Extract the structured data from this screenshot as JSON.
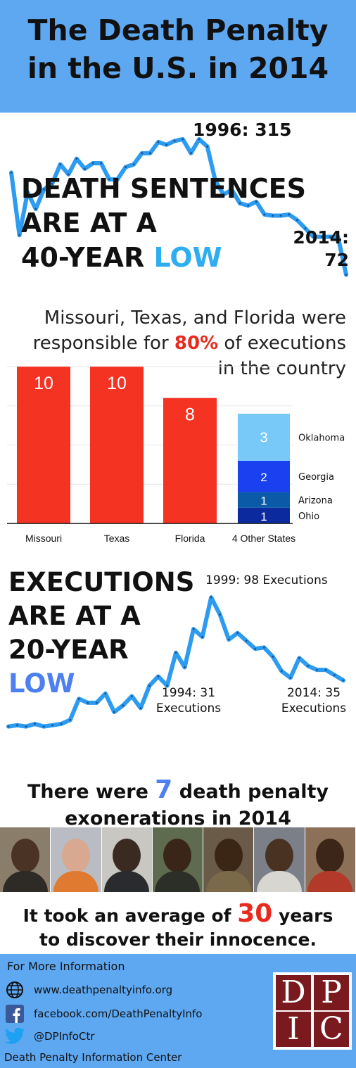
{
  "header": {
    "title_line1": "The Death Penalty",
    "title_line2": "in the U.S. in 2014"
  },
  "sentences": {
    "headline_line1": "DEATH SENTENCES",
    "headline_line2": "ARE AT A",
    "headline_line3_prefix": "40-YEAR ",
    "headline_line3_highlight": "LOW",
    "peak_label": "1996: 315",
    "end_label_line1": "2014:",
    "end_label_line2": "72"
  },
  "executions_by_state": {
    "subhead_line1": "Missouri, Texas, and Florida were",
    "subhead_line2_prefix": "responsible for ",
    "subhead_line2_highlight": "80%",
    "subhead_line2_suffix": " of executions",
    "subhead_line3": "in the country"
  },
  "executions": {
    "headline_line1": "EXECUTIONS",
    "headline_line2": "ARE AT A",
    "headline_line3": "20-YEAR",
    "headline_line4": "LOW",
    "peak_label": "1999: 98 Executions",
    "low_label_line1": "1994: 31",
    "low_label_line2": "Executions",
    "end_label_line1": "2014: 35",
    "end_label_line2": "Executions"
  },
  "exonerations": {
    "line1_prefix": "There were ",
    "line1_number": "7",
    "line1_suffix": " death penalty",
    "line2": "exonerations in 2014",
    "avg_prefix": "It took an average of ",
    "avg_number": "30",
    "avg_suffix": " years",
    "avg_line2": "to discover their innocence."
  },
  "footer": {
    "heading": "For More Information",
    "website": "www.deathpenaltyinfo.org",
    "facebook": "facebook.com/DeathPenaltyInfo",
    "twitter": "@DPInfoCtr",
    "org": "Death Penalty Information Center",
    "logo_letters": [
      "D",
      "P",
      "I",
      "C"
    ]
  },
  "chart_data": [
    {
      "type": "line",
      "name": "death-sentences",
      "x": [
        1973,
        1974,
        1975,
        1976,
        1977,
        1978,
        1979,
        1980,
        1981,
        1982,
        1983,
        1984,
        1985,
        1986,
        1987,
        1988,
        1989,
        1990,
        1991,
        1992,
        1993,
        1994,
        1995,
        1996,
        1997,
        1998,
        1999,
        2000,
        2001,
        2002,
        2003,
        2004,
        2005,
        2006,
        2007,
        2008,
        2009,
        2010,
        2011,
        2012,
        2013,
        2014
      ],
      "values": [
        255,
        143,
        220,
        190,
        225,
        235,
        270,
        252,
        280,
        262,
        272,
        272,
        243,
        243,
        265,
        270,
        290,
        290,
        310,
        305,
        312,
        315,
        290,
        315,
        302,
        240,
        216,
        224,
        200,
        196,
        203,
        180,
        178,
        178,
        180,
        170,
        155,
        140,
        140,
        140,
        140,
        72
      ],
      "ylim": [
        60,
        330
      ],
      "annotations": [
        "1996: 315",
        "2014: 72"
      ],
      "color": "#2c9bf0"
    },
    {
      "type": "bar",
      "categories": [
        "Missouri",
        "Texas",
        "Florida",
        "4 Other States"
      ],
      "values": [
        10,
        10,
        8,
        7
      ],
      "stack_4_other_states": [
        {
          "name": "Ohio",
          "value": 1,
          "color": "#0a2a9e"
        },
        {
          "name": "Arizona",
          "value": 1,
          "color": "#0a5aa8"
        },
        {
          "name": "Georgia",
          "value": 2,
          "color": "#1a40f0"
        },
        {
          "name": "Oklahoma",
          "value": 3,
          "color": "#78c8f8"
        }
      ],
      "bar_color": "#f53323",
      "ylim": [
        0,
        10.5
      ],
      "grid": true
    },
    {
      "type": "line",
      "name": "executions",
      "x": [
        1976,
        1977,
        1978,
        1979,
        1980,
        1981,
        1982,
        1983,
        1984,
        1985,
        1986,
        1987,
        1988,
        1989,
        1990,
        1991,
        1992,
        1993,
        1994,
        1995,
        1996,
        1997,
        1998,
        1999,
        2000,
        2001,
        2002,
        2003,
        2004,
        2005,
        2006,
        2007,
        2008,
        2009,
        2010,
        2011,
        2012,
        2013,
        2014
      ],
      "values": [
        0,
        1,
        0,
        2,
        0,
        1,
        2,
        5,
        21,
        18,
        18,
        25,
        11,
        16,
        23,
        14,
        31,
        38,
        31,
        56,
        45,
        74,
        68,
        98,
        85,
        66,
        71,
        65,
        59,
        60,
        53,
        42,
        37,
        52,
        46,
        43,
        43,
        39,
        35
      ],
      "ylim": [
        -5,
        105
      ],
      "annotations": [
        "1999: 98 Executions",
        "1994: 31 Executions",
        "2014: 35 Executions"
      ],
      "color": "#2c9bf0"
    }
  ]
}
